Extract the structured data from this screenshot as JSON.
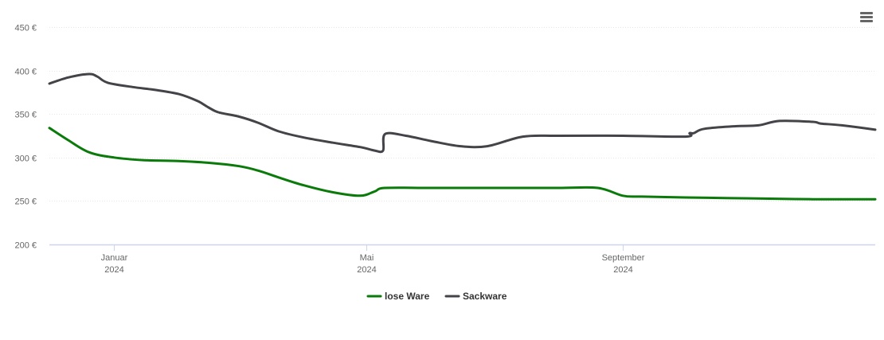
{
  "menu": {
    "icon": "hamburger-menu-icon"
  },
  "chart_data": {
    "type": "line",
    "title": "",
    "xlabel": "",
    "ylabel": "",
    "x_axis": "date",
    "xlim": [
      "2023-12-01",
      "2024-12-31"
    ],
    "ylim": [
      200,
      450
    ],
    "y_tick_values": [
      200,
      250,
      300,
      350,
      400,
      450
    ],
    "y_tick_labels": [
      "200 €",
      "250 €",
      "300 €",
      "350 €",
      "400 €",
      "450 €"
    ],
    "x_ticks": [
      {
        "date": "2024-01-01",
        "month": "Januar",
        "year": "2024"
      },
      {
        "date": "2024-05-01",
        "month": "Mai",
        "year": "2024"
      },
      {
        "date": "2024-09-01",
        "month": "September",
        "year": "2024"
      }
    ],
    "grid": "horizontal",
    "legend_position": "bottom-center",
    "series": [
      {
        "name": "lose Ware",
        "color": "#0a7b0a",
        "points": [
          [
            "2023-12-01",
            334
          ],
          [
            "2023-12-10",
            320
          ],
          [
            "2023-12-20",
            306
          ],
          [
            "2024-01-01",
            300
          ],
          [
            "2024-01-15",
            297
          ],
          [
            "2024-02-01",
            296
          ],
          [
            "2024-02-15",
            294
          ],
          [
            "2024-03-01",
            290
          ],
          [
            "2024-03-10",
            285
          ],
          [
            "2024-03-20",
            277
          ],
          [
            "2024-04-01",
            268
          ],
          [
            "2024-04-15",
            260
          ],
          [
            "2024-04-28",
            256
          ],
          [
            "2024-05-05",
            261
          ],
          [
            "2024-05-10",
            265
          ],
          [
            "2024-06-01",
            265
          ],
          [
            "2024-07-01",
            265
          ],
          [
            "2024-08-01",
            265
          ],
          [
            "2024-08-20",
            265
          ],
          [
            "2024-09-01",
            256
          ],
          [
            "2024-09-10",
            255
          ],
          [
            "2024-10-01",
            254
          ],
          [
            "2024-11-01",
            253
          ],
          [
            "2024-12-01",
            252
          ],
          [
            "2024-12-31",
            252
          ]
        ]
      },
      {
        "name": "Sackware",
        "color": "#434348",
        "points": [
          [
            "2023-12-01",
            385
          ],
          [
            "2023-12-10",
            392
          ],
          [
            "2023-12-20",
            396
          ],
          [
            "2023-12-24",
            393
          ],
          [
            "2023-12-29",
            386
          ],
          [
            "2024-01-10",
            381
          ],
          [
            "2024-01-20",
            378
          ],
          [
            "2024-02-01",
            373
          ],
          [
            "2024-02-10",
            365
          ],
          [
            "2024-02-15",
            358
          ],
          [
            "2024-02-20",
            352
          ],
          [
            "2024-03-01",
            347
          ],
          [
            "2024-03-10",
            340
          ],
          [
            "2024-03-20",
            330
          ],
          [
            "2024-04-01",
            323
          ],
          [
            "2024-04-15",
            317
          ],
          [
            "2024-04-28",
            312
          ],
          [
            "2024-05-05",
            308
          ],
          [
            "2024-05-09",
            308
          ],
          [
            "2024-05-10",
            327
          ],
          [
            "2024-05-20",
            325
          ],
          [
            "2024-06-01",
            319
          ],
          [
            "2024-06-15",
            313
          ],
          [
            "2024-06-28",
            313
          ],
          [
            "2024-07-15",
            324
          ],
          [
            "2024-08-01",
            325
          ],
          [
            "2024-09-01",
            325
          ],
          [
            "2024-10-01",
            324
          ],
          [
            "2024-10-03",
            328
          ],
          [
            "2024-10-05",
            328
          ],
          [
            "2024-10-10",
            333
          ],
          [
            "2024-10-25",
            336
          ],
          [
            "2024-11-05",
            337
          ],
          [
            "2024-11-15",
            342
          ],
          [
            "2024-12-01",
            341
          ],
          [
            "2024-12-05",
            339
          ],
          [
            "2024-12-15",
            337
          ],
          [
            "2024-12-31",
            332
          ]
        ]
      }
    ]
  }
}
